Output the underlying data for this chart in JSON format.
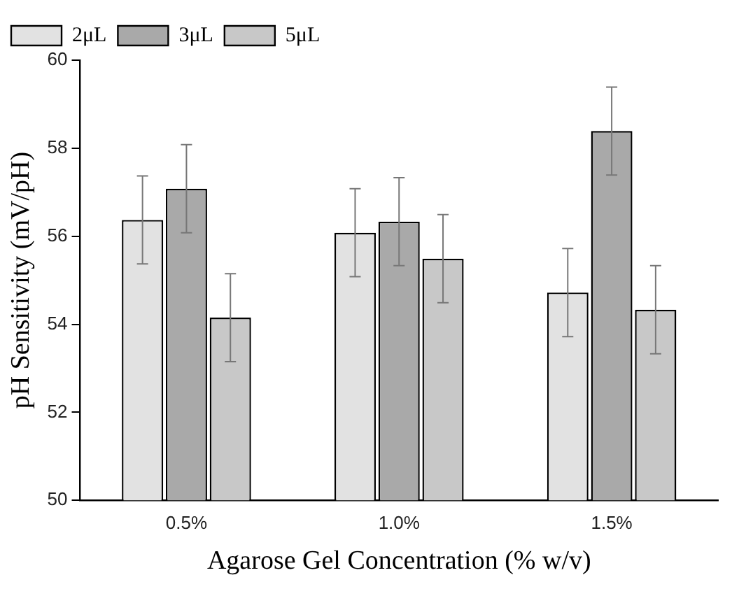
{
  "chart_data": {
    "type": "bar",
    "xlabel": "Agarose Gel Concentration (% w/v)",
    "ylabel": "pH Sensitivity (mV/pH)",
    "categories": [
      "0.5%",
      "1.0%",
      "1.5%"
    ],
    "series": [
      {
        "name": "2μL",
        "color": "#e2e2e2",
        "values": [
          56.37,
          56.08,
          54.72
        ],
        "errors": [
          1,
          1,
          1
        ]
      },
      {
        "name": "3μL",
        "color": "#a9a9a9",
        "values": [
          57.08,
          56.33,
          58.39
        ],
        "errors": [
          1,
          1,
          1
        ]
      },
      {
        "name": "5μL",
        "color": "#c8c8c8",
        "values": [
          54.15,
          55.49,
          54.33
        ],
        "errors": [
          1,
          1,
          1
        ]
      }
    ],
    "ylim": [
      50,
      60
    ],
    "yticks": [
      50,
      52,
      54,
      56,
      58,
      60
    ],
    "grid": false,
    "legend": "top left"
  }
}
